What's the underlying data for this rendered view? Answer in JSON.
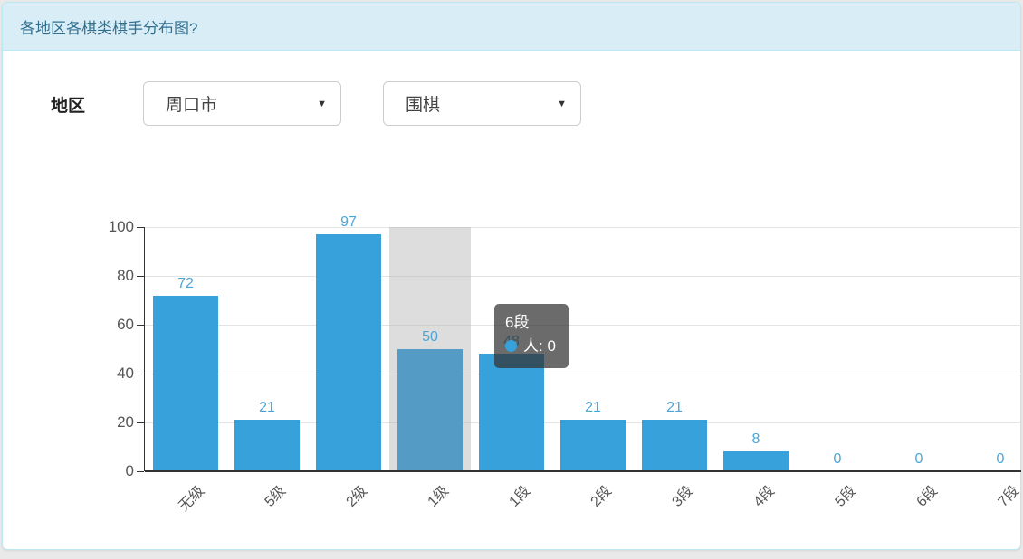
{
  "panel": {
    "title": "各地区各棋类棋手分布图?"
  },
  "filters": {
    "region_label": "地区",
    "region_value": "周口市",
    "game_value": "围棋",
    "arrow_glyph": "▼"
  },
  "tooltip": {
    "title": "6段",
    "line2": "人: 0"
  },
  "colors": {
    "header_bg": "#d9edf7",
    "header_border": "#bce8f1",
    "header_text": "#31708f",
    "bar": "#36a1da",
    "bar_emphasis": "#549cc6",
    "value_label": "#4aa6d8",
    "tooltip_bg": "rgba(50,50,50,0.72)"
  },
  "chart_data": {
    "type": "bar",
    "categories": [
      "无级",
      "5级",
      "2级",
      "1级",
      "1段",
      "2段",
      "3段",
      "4段",
      "5段",
      "6段",
      "7段"
    ],
    "values": [
      72,
      21,
      97,
      50,
      48,
      21,
      21,
      8,
      0,
      0,
      0
    ],
    "title": "",
    "xlabel": "",
    "ylabel": "",
    "ylim": [
      0,
      100
    ],
    "y_ticks": [
      0,
      20,
      40,
      60,
      80,
      100
    ],
    "grid": true,
    "legend": false,
    "highlighted_index": 3,
    "highlighted_category": "1级",
    "tooltip_category": "6段",
    "tooltip_value": 0
  }
}
